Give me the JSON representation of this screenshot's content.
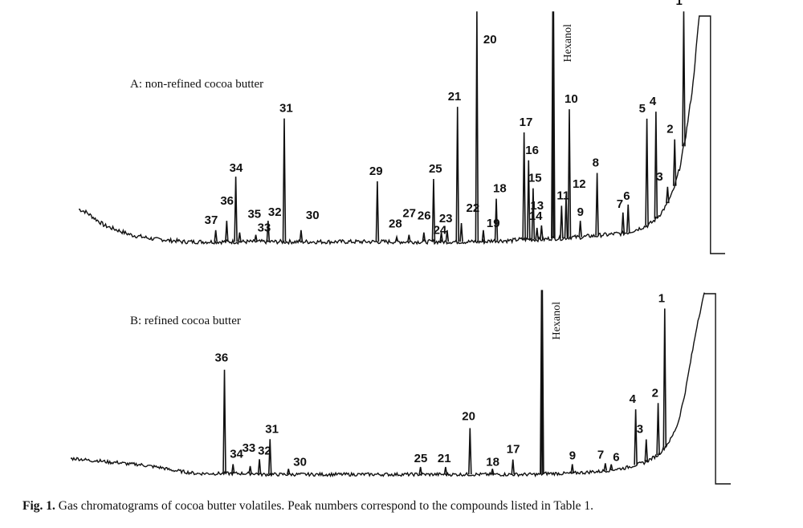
{
  "chart_data": [
    {
      "type": "line",
      "title": "A: non-refined cocoa butter",
      "xlabel": "",
      "ylabel": "",
      "solvent_label": "Hexanol",
      "series": [
        {
          "name": "A",
          "x": [
            0,
            1,
            2,
            3,
            4,
            5,
            6,
            7,
            8,
            9,
            10,
            11,
            12,
            13,
            14,
            15,
            16,
            17,
            18,
            19,
            20,
            21,
            22,
            23,
            24,
            25,
            26,
            27,
            28,
            29,
            30,
            31,
            32,
            33,
            34,
            35,
            36,
            37,
            38,
            39,
            40,
            41,
            42,
            43,
            44,
            45,
            46,
            47,
            48,
            49,
            50,
            51,
            52,
            53,
            54,
            55,
            56,
            57,
            58,
            59,
            60,
            61,
            62,
            63,
            64,
            65,
            66,
            67,
            68,
            69,
            70,
            71,
            72,
            73,
            74,
            75,
            76,
            77,
            78,
            79,
            80,
            81,
            82,
            83,
            84,
            85,
            86,
            87,
            88,
            89,
            90,
            91,
            92,
            93,
            94,
            95,
            96,
            97,
            98,
            99,
            100
          ],
          "values": [
            0.17,
            0.16,
            0.14,
            0.12,
            0.1,
            0.09,
            0.08,
            0.07,
            0.06,
            0.055,
            0.05,
            0.045,
            0.04,
            0.04,
            0.035,
            0.035,
            0.03,
            0.03,
            0.03,
            0.03,
            0.03,
            0.03,
            0.03,
            0.03,
            0.03,
            0.03,
            0.03,
            0.03,
            0.03,
            0.03,
            0.03,
            0.03,
            0.03,
            0.03,
            0.03,
            0.03,
            0.03,
            0.03,
            0.03,
            0.03,
            0.03,
            0.03,
            0.03,
            0.03,
            0.03,
            0.03,
            0.03,
            0.03,
            0.03,
            0.03,
            0.03,
            0.03,
            0.03,
            0.03,
            0.03,
            0.03,
            0.03,
            0.03,
            0.03,
            0.03,
            0.03,
            0.03,
            0.03,
            0.03,
            0.035,
            0.035,
            0.035,
            0.035,
            0.04,
            0.04,
            0.04,
            0.04,
            0.04,
            0.045,
            0.045,
            0.045,
            0.05,
            0.05,
            0.05,
            0.055,
            0.055,
            0.06,
            0.06,
            0.065,
            0.065,
            0.07,
            0.08,
            0.09,
            0.1,
            0.12,
            0.15,
            0.19,
            0.25,
            0.35,
            0.5,
            0.7,
            1.0,
            0.0,
            0.0,
            0.0,
            0.0
          ]
        }
      ],
      "peaks": [
        {
          "label": "37",
          "x": 21.2,
          "height": 0.05
        },
        {
          "label": "36",
          "x": 22.9,
          "height": 0.09
        },
        {
          "label": "34",
          "x": 24.3,
          "height": 0.28
        },
        {
          "label": "35",
          "x": 24.9,
          "height": 0.04
        },
        {
          "label": "33",
          "x": 27.4,
          "height": 0.03
        },
        {
          "label": "32",
          "x": 29.3,
          "height": 0.09
        },
        {
          "label": "31",
          "x": 31.8,
          "height": 0.53
        },
        {
          "label": "30",
          "x": 34.4,
          "height": 0.05
        },
        {
          "label": "29",
          "x": 46.2,
          "height": 0.26
        },
        {
          "label": "28",
          "x": 49.2,
          "height": 0.02
        },
        {
          "label": "27",
          "x": 51.1,
          "height": 0.03
        },
        {
          "label": "26",
          "x": 53.4,
          "height": 0.04
        },
        {
          "label": "25",
          "x": 54.9,
          "height": 0.27
        },
        {
          "label": "24",
          "x": 56.1,
          "height": 0.04
        },
        {
          "label": "23",
          "x": 57.0,
          "height": 0.05
        },
        {
          "label": "22",
          "x": 59.2,
          "height": 0.08
        },
        {
          "label": "21",
          "x": 58.6,
          "height": 0.58
        },
        {
          "label": "20",
          "x": 61.6,
          "height": 1.0
        },
        {
          "label": "19",
          "x": 62.6,
          "height": 0.05
        },
        {
          "label": "18",
          "x": 64.6,
          "height": 0.18
        },
        {
          "label": "17",
          "x": 68.9,
          "height": 0.46
        },
        {
          "label": "16",
          "x": 69.6,
          "height": 0.34
        },
        {
          "label": "15",
          "x": 70.3,
          "height": 0.22
        },
        {
          "label": "14",
          "x": 70.9,
          "height": 0.05
        },
        {
          "label": "13",
          "x": 71.6,
          "height": 0.06
        },
        {
          "label": "Hexanol",
          "x": 73.4,
          "height": 1.0
        },
        {
          "label": "11",
          "x": 74.7,
          "height": 0.14
        },
        {
          "label": "12",
          "x": 75.4,
          "height": 0.18
        },
        {
          "label": "10",
          "x": 75.9,
          "height": 0.55
        },
        {
          "label": "9",
          "x": 77.6,
          "height": 0.07
        },
        {
          "label": "8",
          "x": 80.2,
          "height": 0.27
        },
        {
          "label": "7",
          "x": 84.2,
          "height": 0.09
        },
        {
          "label": "6",
          "x": 85.0,
          "height": 0.12
        },
        {
          "label": "5",
          "x": 87.9,
          "height": 0.46
        },
        {
          "label": "4",
          "x": 89.3,
          "height": 0.46
        },
        {
          "label": "3",
          "x": 91.1,
          "height": 0.07
        },
        {
          "label": "2",
          "x": 92.2,
          "height": 0.2
        },
        {
          "label": "1",
          "x": 93.6,
          "height": 0.74
        }
      ]
    },
    {
      "type": "line",
      "title": "B: refined cocoa butter",
      "xlabel": "",
      "ylabel": "",
      "solvent_label": "Hexanol",
      "series": [
        {
          "name": "B",
          "x": [
            0,
            1,
            2,
            3,
            4,
            5,
            6,
            7,
            8,
            9,
            10,
            11,
            12,
            13,
            14,
            15,
            16,
            17,
            18,
            19,
            20,
            21,
            22,
            23,
            24,
            25,
            26,
            27,
            28,
            29,
            30,
            31,
            32,
            33,
            34,
            35,
            36,
            37,
            38,
            39,
            40,
            41,
            42,
            43,
            44,
            45,
            46,
            47,
            48,
            49,
            50,
            51,
            52,
            53,
            54,
            55,
            56,
            57,
            58,
            59,
            60,
            61,
            62,
            63,
            64,
            65,
            66,
            67,
            68,
            69,
            70,
            71,
            72,
            73,
            74,
            75,
            76,
            77,
            78,
            79,
            80,
            81,
            82,
            83,
            84,
            85,
            86,
            87,
            88,
            89,
            90,
            91,
            92,
            93,
            94,
            95,
            96,
            97,
            98,
            99,
            100
          ],
          "values": [
            0.11,
            0.11,
            0.105,
            0.1,
            0.1,
            0.095,
            0.09,
            0.09,
            0.085,
            0.08,
            0.08,
            0.075,
            0.07,
            0.065,
            0.06,
            0.05,
            0.045,
            0.04,
            0.035,
            0.03,
            0.03,
            0.03,
            0.03,
            0.03,
            0.03,
            0.03,
            0.03,
            0.03,
            0.03,
            0.025,
            0.025,
            0.025,
            0.025,
            0.025,
            0.025,
            0.025,
            0.025,
            0.025,
            0.025,
            0.025,
            0.025,
            0.025,
            0.025,
            0.025,
            0.025,
            0.025,
            0.025,
            0.025,
            0.025,
            0.025,
            0.025,
            0.025,
            0.025,
            0.025,
            0.025,
            0.025,
            0.025,
            0.025,
            0.025,
            0.025,
            0.025,
            0.025,
            0.025,
            0.025,
            0.025,
            0.025,
            0.025,
            0.025,
            0.025,
            0.025,
            0.025,
            0.025,
            0.03,
            0.03,
            0.03,
            0.03,
            0.03,
            0.035,
            0.035,
            0.04,
            0.04,
            0.045,
            0.05,
            0.055,
            0.06,
            0.07,
            0.08,
            0.09,
            0.11,
            0.13,
            0.17,
            0.22,
            0.3,
            0.45,
            0.65,
            0.85,
            1.0,
            0.0,
            0.0,
            0.0,
            0.0
          ]
        }
      ],
      "peaks": [
        {
          "label": "36",
          "x": 23.3,
          "height": 0.56
        },
        {
          "label": "34",
          "x": 24.6,
          "height": 0.05
        },
        {
          "label": "33",
          "x": 27.2,
          "height": 0.04
        },
        {
          "label": "32",
          "x": 28.6,
          "height": 0.08
        },
        {
          "label": "31",
          "x": 30.2,
          "height": 0.19
        },
        {
          "label": "30",
          "x": 33.0,
          "height": 0.03
        },
        {
          "label": "25",
          "x": 53.0,
          "height": 0.04
        },
        {
          "label": "21",
          "x": 56.8,
          "height": 0.04
        },
        {
          "label": "20",
          "x": 60.5,
          "height": 0.25
        },
        {
          "label": "18",
          "x": 63.9,
          "height": 0.03
        },
        {
          "label": "17",
          "x": 67.0,
          "height": 0.08
        },
        {
          "label": "Hexanol",
          "x": 71.4,
          "height": 1.0
        },
        {
          "label": "9",
          "x": 76.0,
          "height": 0.05
        },
        {
          "label": "7",
          "x": 81.0,
          "height": 0.04
        },
        {
          "label": "6",
          "x": 81.9,
          "height": 0.03
        },
        {
          "label": "4",
          "x": 85.6,
          "height": 0.3
        },
        {
          "label": "3",
          "x": 87.2,
          "height": 0.12
        },
        {
          "label": "2",
          "x": 89.0,
          "height": 0.28
        },
        {
          "label": "1",
          "x": 90.0,
          "height": 0.75
        }
      ]
    }
  ],
  "caption": {
    "label": "Fig. 1.",
    "text": "Gas chromatograms of cocoa butter volatiles. Peak numbers correspond to the compounds listed in Table 1."
  }
}
